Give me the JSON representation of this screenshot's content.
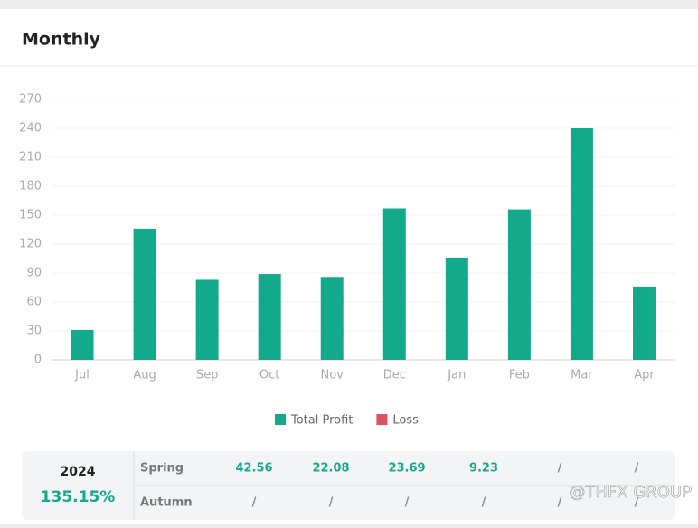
{
  "header": {
    "title": "Monthly"
  },
  "chart_data": {
    "type": "bar",
    "categories": [
      "Jul",
      "Aug",
      "Sep",
      "Oct",
      "Nov",
      "Dec",
      "Jan",
      "Feb",
      "Mar",
      "Apr"
    ],
    "series": [
      {
        "name": "Total Profit",
        "color": "#13a98b",
        "values": [
          31,
          136,
          83,
          89,
          86,
          157,
          106,
          156,
          240,
          76
        ]
      },
      {
        "name": "Loss",
        "color": "#e0515f",
        "values": [
          null,
          null,
          null,
          null,
          null,
          null,
          null,
          null,
          null,
          null
        ]
      }
    ],
    "ylim": [
      0,
      270
    ],
    "yticks": [
      0,
      30,
      60,
      90,
      120,
      150,
      180,
      210,
      240,
      270
    ],
    "grid": true
  },
  "table": {
    "year": "2024",
    "total": "135.15%",
    "rows": [
      {
        "label": "Spring",
        "cells": [
          "42.56",
          "22.08",
          "23.69",
          "9.23",
          "/",
          "/"
        ]
      },
      {
        "label": "Autumn",
        "cells": [
          "/",
          "/",
          "/",
          "/",
          "/",
          "/"
        ]
      }
    ]
  },
  "watermark": "@THFX GROUP"
}
